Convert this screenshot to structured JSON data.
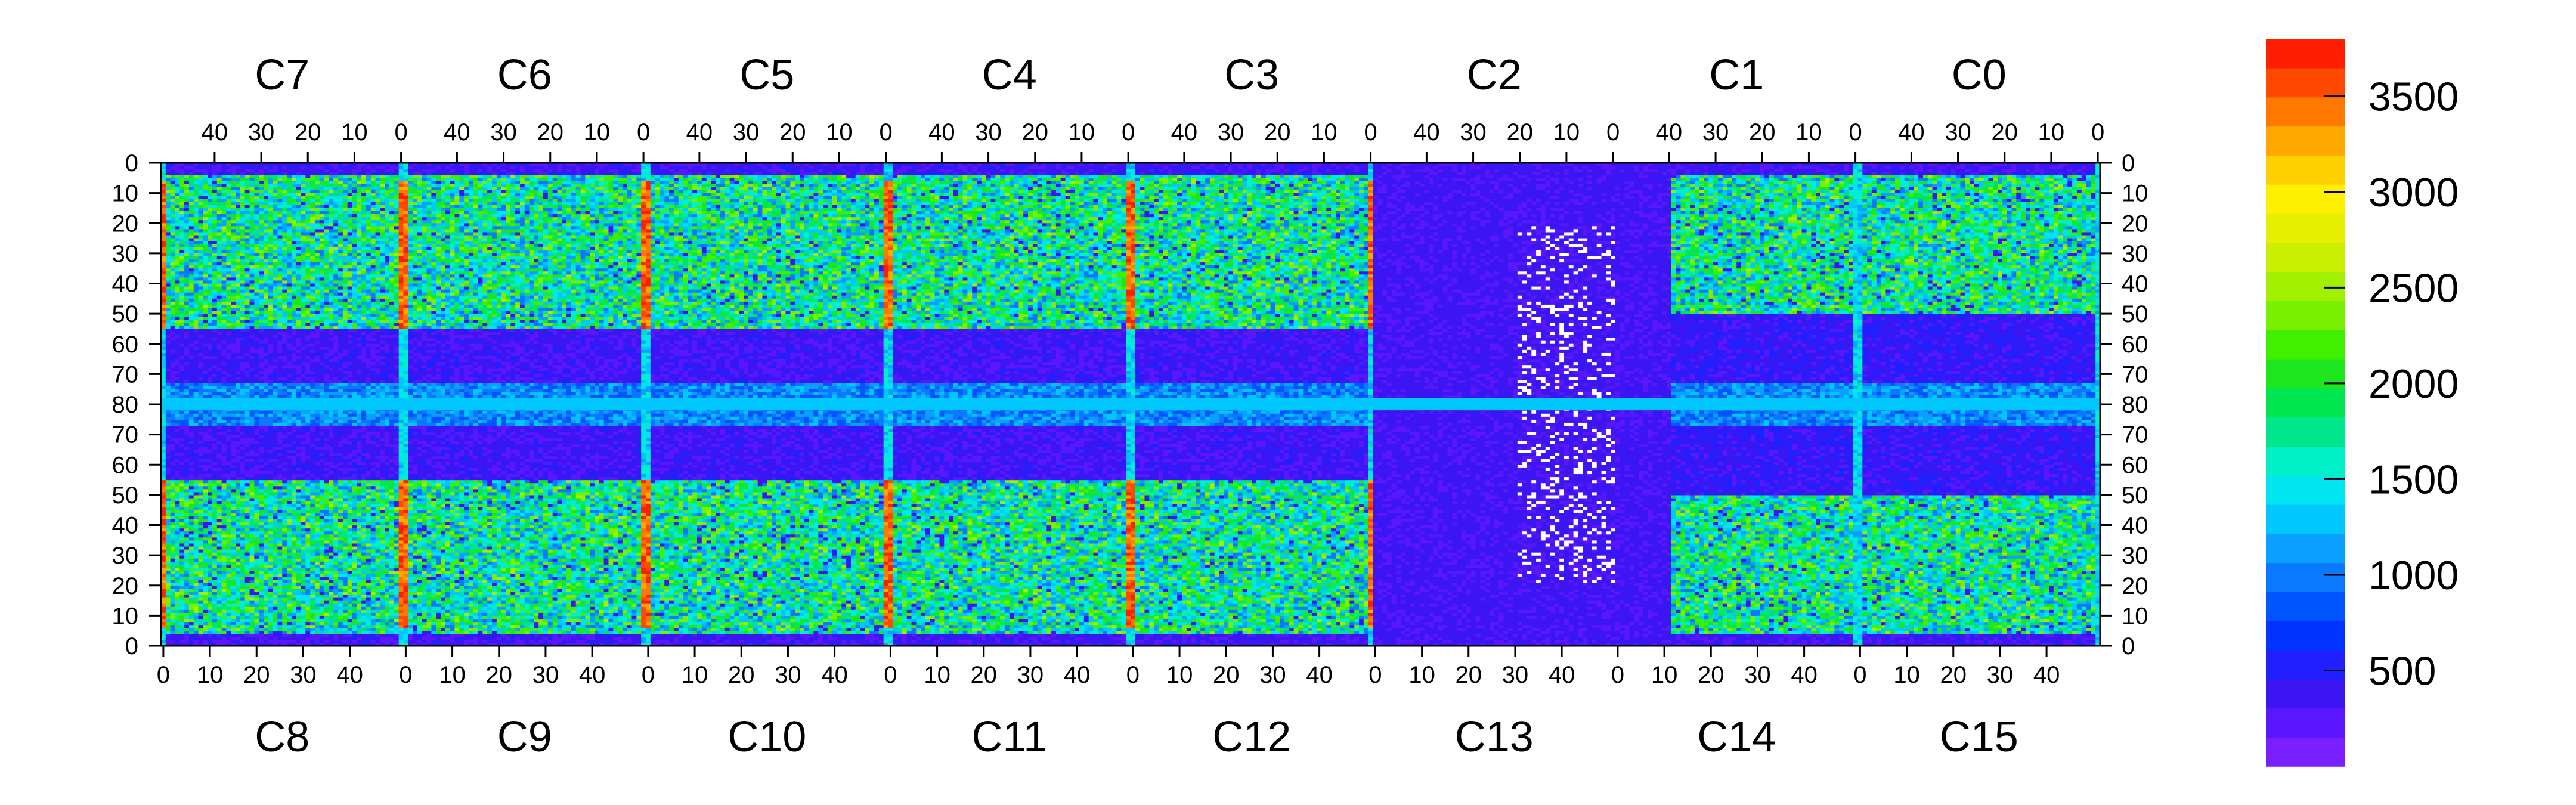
{
  "chart_data": {
    "type": "heatmap",
    "title": "",
    "xlabel": "",
    "ylabel": "",
    "layout": "pixel-detector module, 2 rows x 8 readout chips (52 columns x 80 rows each)",
    "chips_top": [
      "C7",
      "C6",
      "C5",
      "C4",
      "C3",
      "C2",
      "C1",
      "C0"
    ],
    "chips_bottom": [
      "C8",
      "C9",
      "C10",
      "C11",
      "C12",
      "C13",
      "C14",
      "C15"
    ],
    "chip_columns": 52,
    "chip_rows": 80,
    "top_x_ticks": [
      "40",
      "30",
      "20",
      "10",
      "0"
    ],
    "bottom_x_ticks": [
      "0",
      "10",
      "20",
      "30",
      "40"
    ],
    "y_ticks": [
      "0",
      "10",
      "20",
      "30",
      "40",
      "50",
      "60",
      "70",
      "80",
      "70",
      "60",
      "50",
      "40",
      "30",
      "20",
      "10",
      "0"
    ],
    "colorbar": {
      "min": 0,
      "max": 3800,
      "ticks": [
        "500",
        "1000",
        "1500",
        "2000",
        "2500",
        "3000",
        "3500"
      ],
      "tick_values": [
        500,
        1000,
        1500,
        2000,
        2500,
        3000,
        3500
      ],
      "palette": [
        "#7a1fff",
        "#5a16ff",
        "#3c16f2",
        "#2020ff",
        "#0033ff",
        "#0055ff",
        "#0a78ff",
        "#0aa0ff",
        "#00c8ff",
        "#00e6f0",
        "#00f0c8",
        "#00e68c",
        "#00e650",
        "#1ee61e",
        "#40f000",
        "#78f000",
        "#a0f000",
        "#c8f000",
        "#e6f000",
        "#fff000",
        "#ffd000",
        "#ffa800",
        "#ff7800",
        "#ff4800",
        "#ff1e00"
      ]
    },
    "region_levels": {
      "dead_pixel": -1,
      "low": 350,
      "mid_low": 1100,
      "mid": 1700,
      "high_ridge": 3600,
      "edge_column": 1400
    }
  }
}
